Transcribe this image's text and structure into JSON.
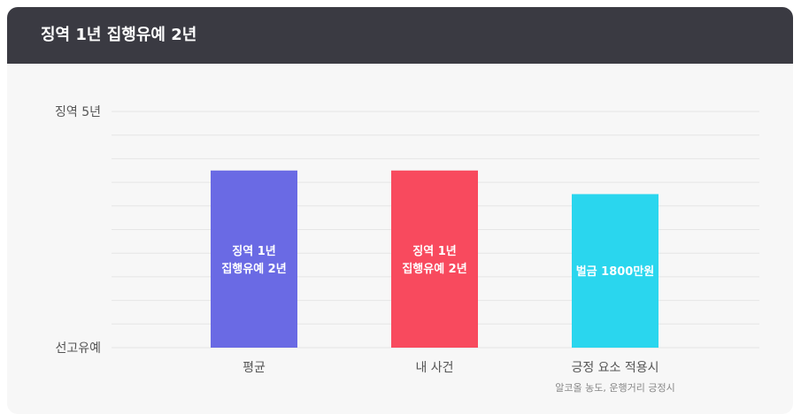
{
  "header": {
    "title": "징역 1년 집행유예 2년"
  },
  "chart_data": {
    "type": "bar",
    "title": "징역 1년 집행유예 2년",
    "y_axis": {
      "top_label": "징역 5년",
      "bottom_label": "선고유예",
      "grid": true
    },
    "ylim": [
      0,
      10
    ],
    "categories": [
      {
        "label": "평균",
        "sublabel": "",
        "value": 7.5,
        "color": "#6a6ae4",
        "bar_lines": [
          "징역 1년",
          "집행유예 2년"
        ]
      },
      {
        "label": "내 사건",
        "sublabel": "",
        "value": 7.5,
        "color": "#f84a5e",
        "bar_lines": [
          "징역 1년",
          "집행유예 2년"
        ]
      },
      {
        "label": "긍정 요소 적용시",
        "sublabel": "알코올 농도, 운행거리 긍정시",
        "value": 6.5,
        "color": "#2ad6ee",
        "bar_lines": [
          "벌금 1800만원"
        ]
      }
    ],
    "colors": {
      "grid": "#e6e6e6",
      "axis_label": "#555555",
      "category_label": "#555555",
      "sublabel": "#888888",
      "bar_text": "#ffffff"
    }
  }
}
